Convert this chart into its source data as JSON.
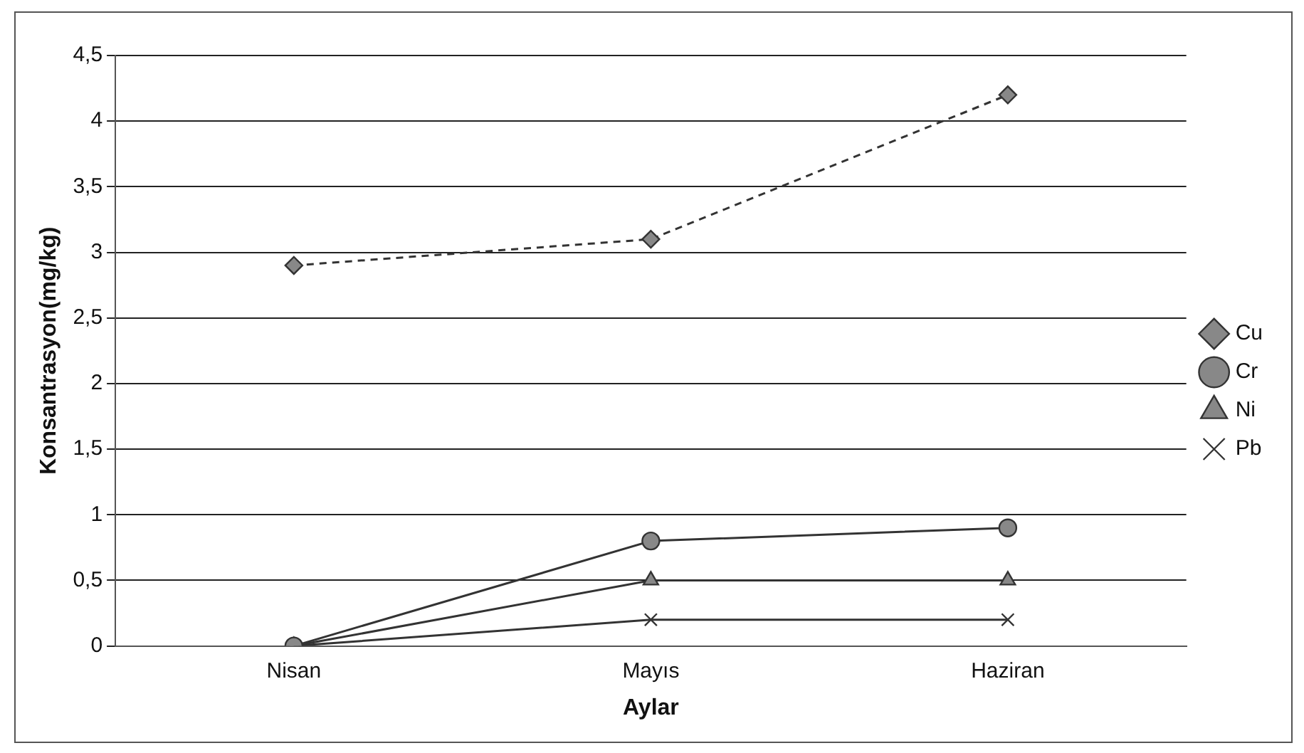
{
  "chart_data": {
    "type": "line",
    "xlabel": "Aylar",
    "ylabel": "Konsantrasyon(mg/kg)",
    "categories": [
      "Nisan",
      "Mayıs",
      "Haziran"
    ],
    "series": [
      {
        "name": "Cu",
        "color": "#333333",
        "values": [
          2.9,
          3.1,
          4.2
        ],
        "marker": "diamond",
        "line_style": "dashed"
      },
      {
        "name": "Cr",
        "color": "#333333",
        "values": [
          0,
          0.8,
          0.9
        ],
        "marker": "circle",
        "line_style": "solid"
      },
      {
        "name": "Ni",
        "color": "#333333",
        "values": [
          0,
          0.5,
          0.5
        ],
        "marker": "triangle",
        "line_style": "solid"
      },
      {
        "name": "Pb",
        "color": "#333333",
        "values": [
          0,
          0.2,
          0.2
        ],
        "marker": "cross",
        "line_style": "solid"
      }
    ],
    "ylim": [
      0,
      4.5
    ],
    "yticks": [
      0,
      {
        "value": 0.5,
        "label": "0,5"
      },
      1,
      {
        "value": 1.5,
        "label": "1,5"
      },
      2,
      {
        "value": 2.5,
        "label": "2,5"
      },
      3,
      {
        "value": 3.5,
        "label": "3,5"
      },
      4,
      {
        "value": 4.5,
        "label": "4,5"
      }
    ],
    "grid": "y",
    "legend": "right"
  }
}
